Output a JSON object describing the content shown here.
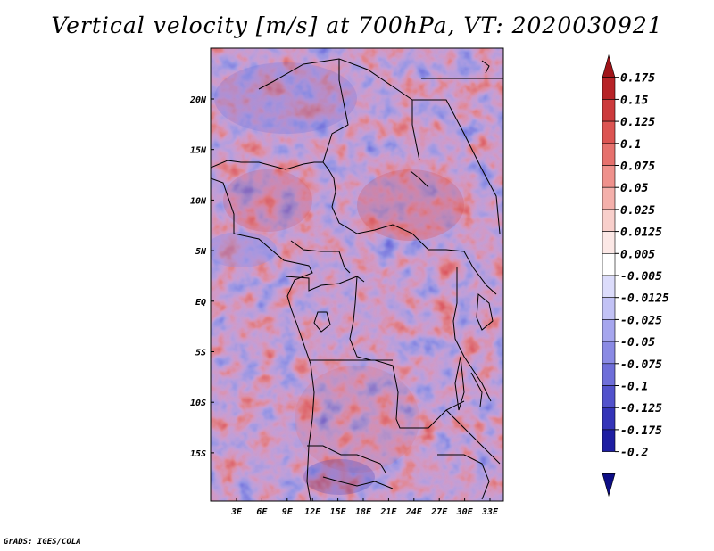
{
  "title": "Vertical velocity [m/s] at 700hPa, VT: 2020030921",
  "footer": "GrADS: IGES/COLA",
  "map": {
    "lat_ticks": [
      "20N",
      "15N",
      "10N",
      "5N",
      "EQ",
      "5S",
      "10S",
      "15S"
    ],
    "lon_ticks": [
      "3E",
      "6E",
      "9E",
      "12E",
      "15E",
      "18E",
      "21E",
      "24E",
      "27E",
      "30E",
      "33E"
    ]
  },
  "colorbar": {
    "labels": [
      "0.175",
      "0.15",
      "0.125",
      "0.1",
      "0.075",
      "0.05",
      "0.025",
      "0.0125",
      "0.005",
      "-0.005",
      "-0.0125",
      "-0.025",
      "-0.05",
      "-0.075",
      "-0.1",
      "-0.125",
      "-0.175",
      "-0.2"
    ],
    "colors": [
      "#a01419",
      "#b72327",
      "#cc3a3c",
      "#dc5452",
      "#e6716d",
      "#ef918c",
      "#f4b0ab",
      "#f8cfcb",
      "#fce8e6",
      "#ffffff",
      "#dcdcfb",
      "#c2c2f5",
      "#a6a6ee",
      "#8a8ae4",
      "#6e6ed9",
      "#5252cc",
      "#3434b8",
      "#1e1ea2",
      "#0e0e86"
    ]
  }
}
